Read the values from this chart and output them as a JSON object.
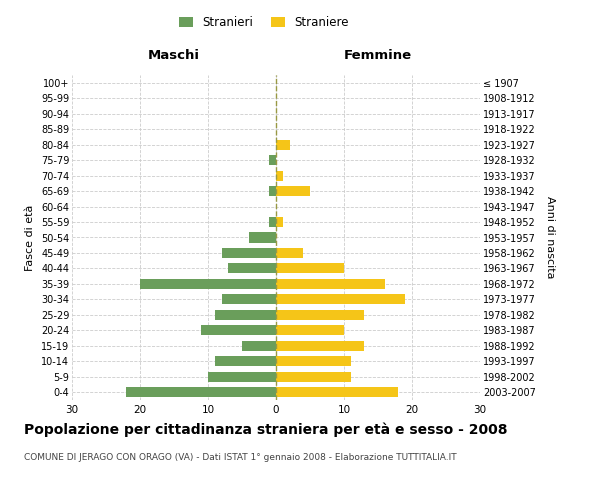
{
  "age_groups": [
    "100+",
    "95-99",
    "90-94",
    "85-89",
    "80-84",
    "75-79",
    "70-74",
    "65-69",
    "60-64",
    "55-59",
    "50-54",
    "45-49",
    "40-44",
    "35-39",
    "30-34",
    "25-29",
    "20-24",
    "15-19",
    "10-14",
    "5-9",
    "0-4"
  ],
  "birth_years": [
    "≤ 1907",
    "1908-1912",
    "1913-1917",
    "1918-1922",
    "1923-1927",
    "1928-1932",
    "1933-1937",
    "1938-1942",
    "1943-1947",
    "1948-1952",
    "1953-1957",
    "1958-1962",
    "1963-1967",
    "1968-1972",
    "1973-1977",
    "1978-1982",
    "1983-1987",
    "1988-1992",
    "1993-1997",
    "1998-2002",
    "2003-2007"
  ],
  "males": [
    0,
    0,
    0,
    0,
    0,
    1,
    0,
    1,
    0,
    1,
    4,
    8,
    7,
    20,
    8,
    9,
    11,
    5,
    9,
    10,
    22
  ],
  "females": [
    0,
    0,
    0,
    0,
    2,
    0,
    1,
    5,
    0,
    1,
    0,
    4,
    10,
    16,
    19,
    13,
    10,
    13,
    11,
    11,
    18
  ],
  "male_color": "#6a9e5b",
  "female_color": "#f5c518",
  "title": "Popolazione per cittadinanza straniera per età e sesso - 2008",
  "subtitle": "COMUNE DI JERAGO CON ORAGO (VA) - Dati ISTAT 1° gennaio 2008 - Elaborazione TUTTITALIA.IT",
  "xlabel_left": "Maschi",
  "xlabel_right": "Femmine",
  "ylabel_left": "Fasce di età",
  "ylabel_right": "Anni di nascita",
  "legend_male": "Stranieri",
  "legend_female": "Straniere",
  "xlim": 30,
  "background_color": "#ffffff",
  "grid_color": "#cccccc",
  "title_fontsize": 10,
  "subtitle_fontsize": 6.5
}
